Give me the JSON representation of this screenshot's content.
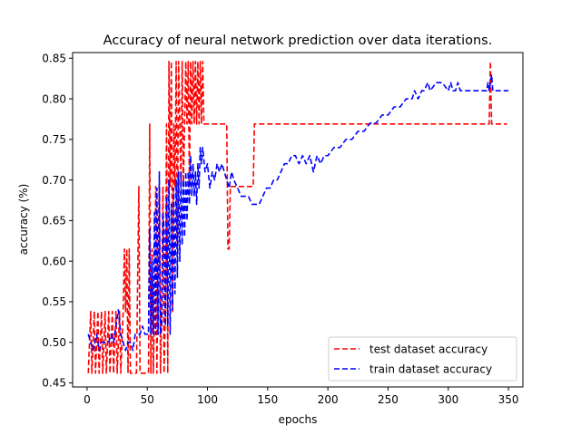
{
  "chart_data": {
    "type": "line",
    "title": "Accuracy of neural network prediction over data iterations.",
    "xlabel": "epochs",
    "ylabel": "accuracy (%)",
    "xlim": [
      -12,
      362
    ],
    "ylim": [
      0.445,
      0.857
    ],
    "xticks": [
      0,
      50,
      100,
      150,
      200,
      250,
      300,
      350
    ],
    "yticks": [
      0.45,
      0.5,
      0.55,
      0.6,
      0.65,
      0.7,
      0.75,
      0.8,
      0.85
    ],
    "ytick_labels": [
      "0.45",
      "0.50",
      "0.55",
      "0.60",
      "0.65",
      "0.70",
      "0.75",
      "0.80",
      "0.85"
    ],
    "legend_position": "lower-right",
    "grid": false,
    "series": [
      {
        "name": "test dataset accuracy",
        "color": "#ff0000",
        "style": "dashed",
        "x": [
          1,
          3,
          4,
          6,
          7,
          9,
          10,
          12,
          13,
          15,
          16,
          18,
          19,
          21,
          22,
          24,
          25,
          27,
          28,
          30,
          31,
          32,
          33,
          34,
          35,
          36,
          37,
          38,
          39,
          40,
          41,
          43,
          44,
          45,
          46,
          47,
          48,
          49,
          50,
          51,
          52,
          53,
          54,
          55,
          56,
          57,
          58,
          59,
          60,
          61,
          62,
          63,
          64,
          65,
          66,
          67,
          68,
          69,
          70,
          71,
          72,
          73,
          74,
          75,
          76,
          77,
          78,
          79,
          80,
          81,
          82,
          83,
          84,
          85,
          86,
          87,
          88,
          89,
          90,
          91,
          92,
          93,
          94,
          95,
          96,
          97,
          100,
          105,
          110,
          111,
          113,
          114,
          115,
          116,
          117,
          118,
          119,
          120,
          125,
          130,
          135,
          138,
          139,
          140,
          150,
          200,
          250,
          300,
          330,
          334,
          335,
          336,
          337,
          338,
          345,
          349
        ],
        "y": [
          0.462,
          0.538,
          0.462,
          0.538,
          0.462,
          0.538,
          0.462,
          0.538,
          0.462,
          0.538,
          0.462,
          0.538,
          0.462,
          0.538,
          0.462,
          0.538,
          0.462,
          0.538,
          0.462,
          0.538,
          0.615,
          0.538,
          0.615,
          0.462,
          0.615,
          0.462,
          0.462,
          0.462,
          0.462,
          0.462,
          0.462,
          0.692,
          0.462,
          0.462,
          0.462,
          0.462,
          0.462,
          0.462,
          0.462,
          0.462,
          0.769,
          0.462,
          0.615,
          0.462,
          0.538,
          0.692,
          0.462,
          0.615,
          0.692,
          0.462,
          0.538,
          0.692,
          0.462,
          0.538,
          0.769,
          0.462,
          0.846,
          0.692,
          0.846,
          0.538,
          0.769,
          0.692,
          0.846,
          0.615,
          0.846,
          0.769,
          0.692,
          0.846,
          0.692,
          0.769,
          0.846,
          0.769,
          0.846,
          0.692,
          0.846,
          0.769,
          0.846,
          0.769,
          0.846,
          0.769,
          0.846,
          0.769,
          0.846,
          0.769,
          0.846,
          0.769,
          0.769,
          0.769,
          0.769,
          0.769,
          0.769,
          0.769,
          0.769,
          0.769,
          0.615,
          0.615,
          0.692,
          0.692,
          0.692,
          0.692,
          0.692,
          0.692,
          0.769,
          0.769,
          0.769,
          0.769,
          0.769,
          0.769,
          0.769,
          0.769,
          0.846,
          0.769,
          0.769,
          0.769,
          0.769,
          0.769
        ]
      },
      {
        "name": "train dataset accuracy",
        "color": "#0000ff",
        "style": "dashed",
        "x": [
          1,
          3,
          5,
          8,
          10,
          12,
          15,
          18,
          20,
          22,
          24,
          26,
          28,
          30,
          32,
          34,
          36,
          38,
          40,
          42,
          44,
          46,
          48,
          50,
          51,
          52,
          53,
          54,
          55,
          56,
          57,
          58,
          59,
          60,
          61,
          62,
          63,
          64,
          65,
          66,
          67,
          68,
          69,
          70,
          71,
          72,
          73,
          74,
          75,
          76,
          77,
          78,
          79,
          80,
          81,
          82,
          83,
          84,
          85,
          86,
          87,
          88,
          89,
          90,
          91,
          92,
          93,
          94,
          95,
          96,
          98,
          100,
          102,
          104,
          106,
          108,
          110,
          112,
          114,
          116,
          118,
          120,
          122,
          125,
          128,
          131,
          134,
          137,
          140,
          143,
          146,
          149,
          152,
          155,
          158,
          161,
          164,
          167,
          170,
          173,
          176,
          179,
          182,
          185,
          188,
          191,
          194,
          197,
          200,
          205,
          210,
          215,
          220,
          225,
          230,
          235,
          240,
          245,
          250,
          255,
          260,
          265,
          270,
          272,
          275,
          278,
          280,
          283,
          285,
          290,
          295,
          300,
          302,
          304,
          306,
          308,
          310,
          312,
          315,
          320,
          325,
          330,
          332,
          333,
          334,
          335,
          336,
          337,
          338,
          340,
          345,
          350
        ],
        "y": [
          0.51,
          0.5,
          0.49,
          0.51,
          0.49,
          0.5,
          0.5,
          0.5,
          0.51,
          0.5,
          0.52,
          0.54,
          0.51,
          0.5,
          0.49,
          0.5,
          0.5,
          0.49,
          0.51,
          0.51,
          0.51,
          0.52,
          0.51,
          0.51,
          0.51,
          0.64,
          0.51,
          0.6,
          0.51,
          0.66,
          0.51,
          0.69,
          0.51,
          0.71,
          0.51,
          0.52,
          0.66,
          0.64,
          0.52,
          0.68,
          0.52,
          0.7,
          0.51,
          0.67,
          0.54,
          0.69,
          0.56,
          0.7,
          0.58,
          0.71,
          0.6,
          0.71,
          0.62,
          0.7,
          0.63,
          0.71,
          0.65,
          0.71,
          0.67,
          0.73,
          0.68,
          0.72,
          0.68,
          0.71,
          0.67,
          0.72,
          0.69,
          0.74,
          0.72,
          0.74,
          0.71,
          0.72,
          0.69,
          0.71,
          0.7,
          0.72,
          0.71,
          0.72,
          0.71,
          0.7,
          0.69,
          0.71,
          0.7,
          0.69,
          0.68,
          0.68,
          0.68,
          0.67,
          0.67,
          0.67,
          0.68,
          0.69,
          0.69,
          0.7,
          0.7,
          0.71,
          0.72,
          0.72,
          0.73,
          0.73,
          0.72,
          0.73,
          0.72,
          0.73,
          0.71,
          0.73,
          0.72,
          0.73,
          0.73,
          0.74,
          0.74,
          0.75,
          0.75,
          0.76,
          0.76,
          0.77,
          0.77,
          0.78,
          0.78,
          0.79,
          0.79,
          0.8,
          0.8,
          0.81,
          0.8,
          0.81,
          0.81,
          0.82,
          0.81,
          0.82,
          0.82,
          0.81,
          0.82,
          0.81,
          0.81,
          0.82,
          0.81,
          0.81,
          0.81,
          0.81,
          0.81,
          0.81,
          0.81,
          0.82,
          0.81,
          0.82,
          0.83,
          0.81,
          0.81,
          0.81,
          0.81,
          0.81
        ]
      }
    ]
  }
}
